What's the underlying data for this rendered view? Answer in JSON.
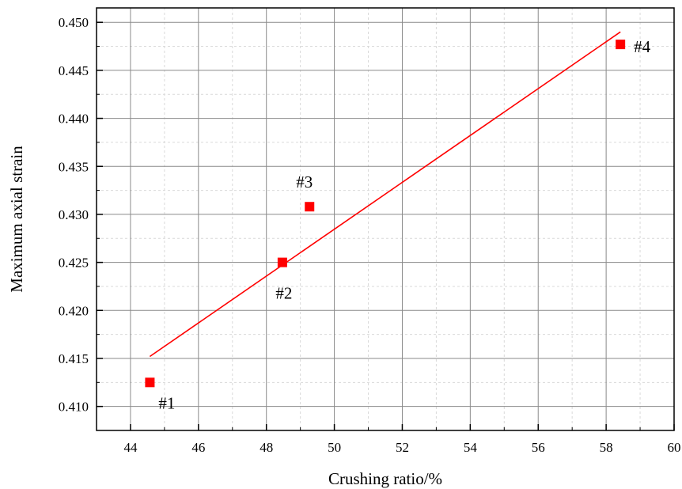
{
  "chart_data": {
    "type": "scatter",
    "title": "",
    "xlabel": "Crushing ratio/%",
    "ylabel": "Maximum axial strain",
    "xlim": [
      43,
      60
    ],
    "ylim": [
      0.4075,
      0.4515
    ],
    "x_ticks": [
      44,
      46,
      48,
      50,
      52,
      54,
      56,
      58,
      60
    ],
    "x_tick_labels": [
      "44",
      "46",
      "48",
      "50",
      "52",
      "54",
      "56",
      "58",
      "60"
    ],
    "y_ticks": [
      0.41,
      0.415,
      0.42,
      0.425,
      0.43,
      0.435,
      0.44,
      0.445,
      0.45
    ],
    "y_tick_labels": [
      "0.410",
      "0.415",
      "0.420",
      "0.425",
      "0.430",
      "0.435",
      "0.440",
      "0.445",
      "0.450"
    ],
    "grid": true,
    "legend": "none",
    "series": [
      {
        "type": "scatter",
        "marker": "square",
        "color": "#ff0000",
        "points": [
          {
            "x": 44.57,
            "y": 0.4125,
            "label": "#1"
          },
          {
            "x": 48.47,
            "y": 0.425,
            "label": "#2"
          },
          {
            "x": 49.27,
            "y": 0.4308,
            "label": "#3"
          },
          {
            "x": 58.42,
            "y": 0.4477,
            "label": "#4"
          }
        ]
      },
      {
        "type": "line",
        "color": "#ff0000",
        "x": [
          44.57,
          58.42
        ],
        "y": [
          0.4152,
          0.449
        ]
      }
    ]
  }
}
